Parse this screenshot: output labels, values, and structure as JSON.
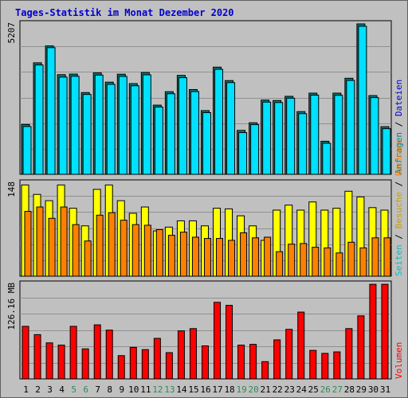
{
  "title": "Tages-Statistik im Monat Dezember 2020",
  "colors": {
    "background": "#c0c0c0",
    "grid": "#909090",
    "title": "#0000cc",
    "weekday_label": "#000000",
    "weekend_label": "#2e8b57",
    "hits": "#008080",
    "files": "#00e0ff",
    "pages": "#00e0e0",
    "visits": "#ffff00",
    "sites": "#ff8000",
    "kbytes": "#ff0000"
  },
  "chart_data": [
    {
      "type": "bar",
      "panel": "top",
      "ymax_label": "5207",
      "ylim": [
        0,
        5207
      ],
      "right_label": [
        {
          "text": "Anfragen",
          "color": "#008080"
        },
        {
          "text": " / ",
          "color": "#000000"
        },
        {
          "text": "Dateien",
          "color": "#0000cc"
        }
      ],
      "categories": [
        "1",
        "2",
        "3",
        "4",
        "5",
        "6",
        "7",
        "8",
        "9",
        "10",
        "11",
        "12",
        "13",
        "14",
        "15",
        "16",
        "17",
        "18",
        "19",
        "20",
        "21",
        "22",
        "23",
        "24",
        "25",
        "26",
        "27",
        "28",
        "29",
        "30",
        "31"
      ],
      "series": [
        {
          "name": "Anfragen",
          "values": [
            1725,
            3860,
            4445,
            3450,
            3470,
            2830,
            3510,
            3190,
            3465,
            3140,
            3525,
            2395,
            2860,
            3425,
            2935,
            2205,
            3710,
            3245,
            1520,
            1785,
            2570,
            2555,
            2700,
            2170,
            2810,
            1145,
            2810,
            3325,
            5207,
            2725,
            1650
          ]
        },
        {
          "name": "Dateien",
          "values": [
            1710,
            3840,
            4440,
            3420,
            3450,
            2820,
            3490,
            3170,
            3445,
            3120,
            3500,
            2385,
            2845,
            3400,
            2920,
            2190,
            3690,
            3230,
            1500,
            1775,
            2555,
            2540,
            2690,
            2155,
            2795,
            1130,
            2790,
            3305,
            5180,
            2710,
            1635
          ]
        }
      ]
    },
    {
      "type": "bar",
      "panel": "middle",
      "ymax_label": "148",
      "ylim": [
        0,
        148
      ],
      "right_label": [
        {
          "text": "Seiten",
          "color": "#00c0c0"
        },
        {
          "text": " / ",
          "color": "#000000"
        },
        {
          "text": "Besuche",
          "color": "#c8a000"
        },
        {
          "text": " / ",
          "color": "#000000"
        },
        {
          "text": "Rechner",
          "color": "#ff8000"
        }
      ],
      "categories": [
        "1",
        "2",
        "3",
        "4",
        "5",
        "6",
        "7",
        "8",
        "9",
        "10",
        "11",
        "12",
        "13",
        "14",
        "15",
        "16",
        "17",
        "18",
        "19",
        "20",
        "21",
        "22",
        "23",
        "24",
        "25",
        "26",
        "27",
        "28",
        "29",
        "30",
        "31"
      ],
      "series": [
        {
          "name": "Seiten",
          "values": [
            145,
            130,
            120,
            145,
            108,
            80,
            138,
            145,
            120,
            100,
            110,
            72,
            78,
            88,
            88,
            80,
            108,
            107,
            96,
            80,
            57,
            105,
            113,
            105,
            118,
            105,
            108,
            135,
            126,
            109,
            105
          ]
        },
        {
          "name": "Besuche",
          "values": [
            145,
            130,
            120,
            145,
            108,
            80,
            138,
            145,
            120,
            100,
            110,
            72,
            78,
            88,
            88,
            80,
            108,
            107,
            96,
            80,
            57,
            105,
            113,
            105,
            118,
            105,
            108,
            135,
            126,
            109,
            105
          ]
        },
        {
          "name": "Rechner",
          "values": [
            103,
            110,
            92,
            110,
            82,
            56,
            97,
            101,
            89,
            82,
            81,
            74,
            65,
            70,
            62,
            60,
            60,
            57,
            69,
            61,
            62,
            39,
            51,
            52,
            46,
            45,
            37,
            54,
            45,
            61,
            61
          ]
        }
      ]
    },
    {
      "type": "bar",
      "panel": "bottom",
      "ymax_label": "126.16 MB",
      "ylim": [
        0,
        126.16
      ],
      "right_label": [
        {
          "text": "Volumen",
          "color": "#ff0000"
        }
      ],
      "categories": [
        "1",
        "2",
        "3",
        "4",
        "5",
        "6",
        "7",
        "8",
        "9",
        "10",
        "11",
        "12",
        "13",
        "14",
        "15",
        "16",
        "17",
        "18",
        "19",
        "20",
        "21",
        "22",
        "23",
        "24",
        "25",
        "26",
        "27",
        "28",
        "29",
        "30",
        "31"
      ],
      "series": [
        {
          "name": "Volumen",
          "values": [
            70,
            59,
            48,
            45,
            70,
            40,
            72,
            65,
            31,
            42,
            39,
            54,
            35,
            64,
            67,
            44,
            102,
            98,
            45,
            46,
            23,
            52,
            66,
            89,
            38,
            34,
            36,
            67,
            84,
            126,
            126
          ]
        }
      ]
    }
  ],
  "x_labels": [
    {
      "text": "1",
      "weekend": false
    },
    {
      "text": "2",
      "weekend": false
    },
    {
      "text": "3",
      "weekend": false
    },
    {
      "text": "4",
      "weekend": false
    },
    {
      "text": "5",
      "weekend": true
    },
    {
      "text": "6",
      "weekend": true
    },
    {
      "text": "7",
      "weekend": false
    },
    {
      "text": "8",
      "weekend": false
    },
    {
      "text": "9",
      "weekend": false
    },
    {
      "text": "10",
      "weekend": false
    },
    {
      "text": "11",
      "weekend": false
    },
    {
      "text": "12",
      "weekend": true
    },
    {
      "text": "13",
      "weekend": true
    },
    {
      "text": "14",
      "weekend": false
    },
    {
      "text": "15",
      "weekend": false
    },
    {
      "text": "16",
      "weekend": false
    },
    {
      "text": "17",
      "weekend": false
    },
    {
      "text": "18",
      "weekend": false
    },
    {
      "text": "19",
      "weekend": true
    },
    {
      "text": "20",
      "weekend": true
    },
    {
      "text": "21",
      "weekend": false
    },
    {
      "text": "22",
      "weekend": false
    },
    {
      "text": "23",
      "weekend": false
    },
    {
      "text": "24",
      "weekend": false
    },
    {
      "text": "25",
      "weekend": false
    },
    {
      "text": "26",
      "weekend": true
    },
    {
      "text": "27",
      "weekend": true
    },
    {
      "text": "28",
      "weekend": false
    },
    {
      "text": "29",
      "weekend": false
    },
    {
      "text": "30",
      "weekend": false
    },
    {
      "text": "31",
      "weekend": false
    }
  ]
}
